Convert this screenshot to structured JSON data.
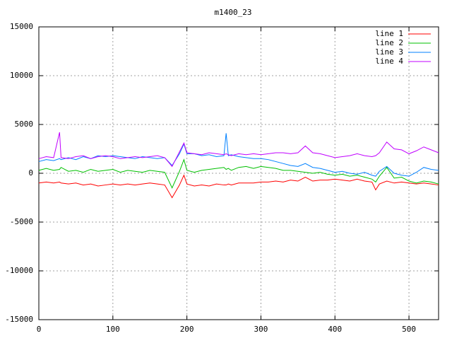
{
  "chart_data": {
    "type": "line",
    "title": "m1400_23",
    "x": [
      0,
      10,
      20,
      28,
      30,
      40,
      50,
      60,
      70,
      80,
      90,
      100,
      110,
      120,
      130,
      140,
      150,
      160,
      170,
      180,
      190,
      196,
      200,
      210,
      220,
      230,
      240,
      250,
      253,
      256,
      260,
      270,
      280,
      290,
      300,
      310,
      320,
      330,
      340,
      350,
      360,
      370,
      380,
      390,
      400,
      410,
      420,
      430,
      440,
      450,
      455,
      460,
      470,
      480,
      490,
      500,
      510,
      520,
      530,
      540
    ],
    "series": [
      {
        "name": "line 1",
        "color": "#ff0000",
        "values": [
          -1000,
          -900,
          -1000,
          -900,
          -1000,
          -1100,
          -1000,
          -1200,
          -1100,
          -1300,
          -1200,
          -1100,
          -1200,
          -1100,
          -1200,
          -1100,
          -1000,
          -1100,
          -1200,
          -2500,
          -1200,
          -200,
          -1100,
          -1300,
          -1200,
          -1300,
          -1100,
          -1200,
          -1200,
          -1100,
          -1200,
          -1000,
          -1000,
          -1000,
          -900,
          -900,
          -800,
          -900,
          -700,
          -800,
          -400,
          -800,
          -700,
          -700,
          -600,
          -700,
          -800,
          -600,
          -800,
          -900,
          -1700,
          -1100,
          -800,
          -1000,
          -900,
          -1000,
          -1100,
          -1000,
          -1100,
          -1200
        ]
      },
      {
        "name": "line 2",
        "color": "#00c000",
        "values": [
          300,
          500,
          300,
          400,
          600,
          200,
          300,
          100,
          400,
          200,
          300,
          400,
          100,
          300,
          200,
          100,
          300,
          200,
          100,
          -1500,
          200,
          1400,
          300,
          100,
          300,
          400,
          500,
          600,
          400,
          500,
          300,
          600,
          700,
          500,
          700,
          600,
          500,
          300,
          300,
          200,
          100,
          0,
          100,
          -100,
          -200,
          -100,
          -300,
          -200,
          -400,
          -600,
          -900,
          -300,
          600,
          -500,
          -400,
          -800,
          -1000,
          -800,
          -900,
          -1100
        ]
      },
      {
        "name": "line 3",
        "color": "#0080ff",
        "values": [
          1200,
          1400,
          1300,
          1500,
          1400,
          1600,
          1400,
          1700,
          1500,
          1800,
          1700,
          1800,
          1700,
          1600,
          1500,
          1700,
          1600,
          1500,
          1600,
          800,
          2000,
          3000,
          2000,
          2000,
          1800,
          1900,
          1700,
          1800,
          4100,
          1800,
          1900,
          1700,
          1600,
          1500,
          1500,
          1400,
          1200,
          1000,
          800,
          700,
          1000,
          600,
          500,
          300,
          100,
          200,
          0,
          -100,
          100,
          -200,
          -300,
          200,
          700,
          0,
          -200,
          -300,
          100,
          600,
          400,
          300
        ]
      },
      {
        "name": "line 4",
        "color": "#c000ff",
        "values": [
          1500,
          1700,
          1600,
          4200,
          1600,
          1500,
          1700,
          1800,
          1500,
          1700,
          1800,
          1700,
          1500,
          1600,
          1700,
          1600,
          1700,
          1800,
          1600,
          700,
          2200,
          3100,
          2100,
          2000,
          1900,
          2100,
          2000,
          1900,
          2000,
          1900,
          1800,
          2000,
          1900,
          2000,
          1900,
          2000,
          2100,
          2100,
          2000,
          2100,
          2800,
          2100,
          2000,
          1800,
          1600,
          1700,
          1800,
          2000,
          1800,
          1700,
          1800,
          2100,
          3200,
          2500,
          2400,
          2000,
          2300,
          2700,
          2400,
          2100
        ]
      }
    ],
    "xlim": [
      0,
      540
    ],
    "ylim": [
      -15000,
      15000
    ],
    "xticks": [
      0,
      100,
      200,
      300,
      400,
      500
    ],
    "yticks": [
      -15000,
      -10000,
      -5000,
      0,
      5000,
      10000,
      15000
    ],
    "grid": true,
    "legend": "top-right"
  }
}
